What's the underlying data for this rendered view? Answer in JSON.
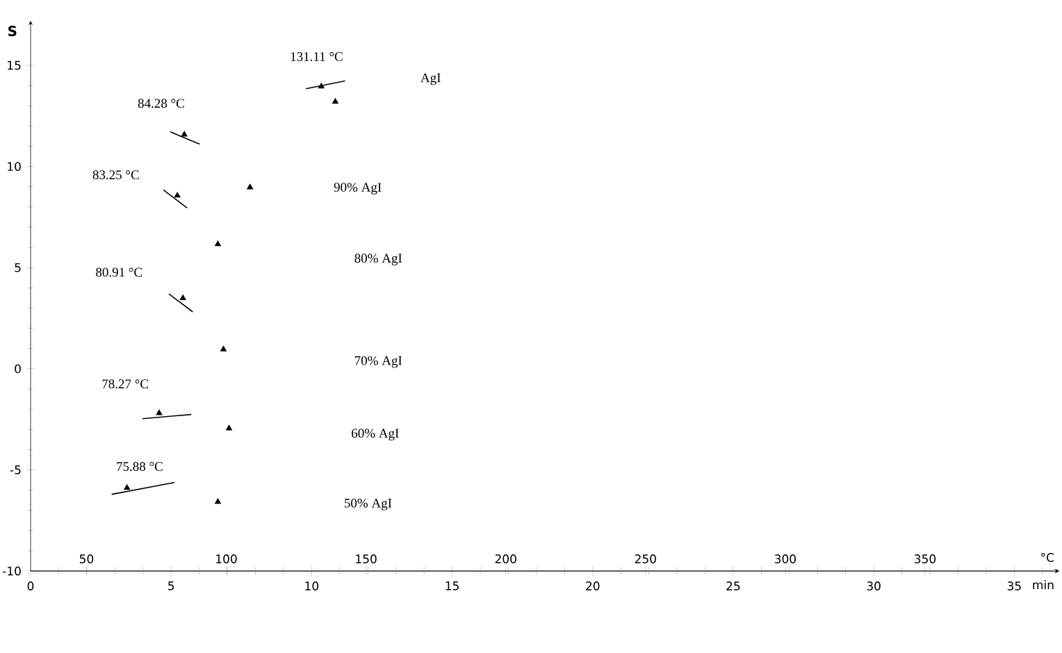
{
  "chart_data": {
    "type": "line",
    "xlabel": "°C",
    "x2label": "min",
    "ylabel": "S",
    "xlim": [
      30,
      398
    ],
    "xticks": [
      50,
      100,
      150,
      200,
      250,
      300,
      350
    ],
    "x2lim": [
      0,
      36.6
    ],
    "x2ticks": [
      0,
      {
        "value": 1,
        "label": null
      },
      {
        "value": 2,
        "label": null
      },
      {
        "value": 3,
        "label": null
      },
      {
        "value": 4,
        "label": null
      },
      5,
      {
        "value": 6,
        "label": null
      },
      {
        "value": 7,
        "label": null
      },
      {
        "value": 8,
        "label": null
      },
      {
        "value": 9,
        "label": null
      },
      10,
      {
        "value": 11,
        "label": null
      },
      {
        "value": 12,
        "label": null
      },
      {
        "value": 13,
        "label": null
      },
      {
        "value": 14,
        "label": null
      },
      15,
      {
        "value": 16,
        "label": null
      },
      {
        "value": 17,
        "label": null
      },
      {
        "value": 18,
        "label": null
      },
      {
        "value": 19,
        "label": null
      },
      20,
      {
        "value": 21,
        "label": null
      },
      {
        "value": 22,
        "label": null
      },
      {
        "value": 23,
        "label": null
      },
      {
        "value": 24,
        "label": null
      },
      25,
      {
        "value": 26,
        "label": null
      },
      {
        "value": 27,
        "label": null
      },
      {
        "value": 28,
        "label": null
      },
      {
        "value": 29,
        "label": null
      },
      30,
      {
        "value": 31,
        "label": null
      },
      {
        "value": 32,
        "label": null
      },
      {
        "value": 33,
        "label": null
      },
      {
        "value": 34,
        "label": null
      },
      35,
      {
        "value": 36,
        "label": null
      }
    ],
    "ylim": [
      -10,
      17.2
    ],
    "yticks": [
      -10,
      -5,
      0,
      5,
      10,
      15
    ],
    "grid": false,
    "series": [
      {
        "color": "#000000",
        "x": [
          128.5,
          142.5
        ],
        "values": [
          13.84,
          14.23
        ]
      },
      {
        "color": "#000000",
        "x": [
          80,
          90.5
        ],
        "values": [
          11.71,
          11.1
        ]
      },
      {
        "color": "#000000",
        "x": [
          77.5,
          86
        ],
        "values": [
          8.84,
          7.95
        ]
      },
      {
        "color": "#000000",
        "x": [
          79.5,
          88
        ],
        "values": [
          3.7,
          2.81
        ]
      },
      {
        "color": "#000000",
        "x": [
          70,
          87.5
        ],
        "values": [
          -2.47,
          -2.26
        ]
      },
      {
        "color": "#000000",
        "x": [
          59,
          81.5
        ],
        "values": [
          -6.21,
          -5.62
        ]
      },
      {
        "type": "scatter",
        "marker": "triangle",
        "color": "#000000",
        "x": [
          134,
          139,
          85,
          108.5,
          82.5,
          97,
          84.5,
          99,
          76,
          101,
          64.5,
          97
        ],
        "values": [
          13.96,
          13.2,
          11.58,
          8.97,
          8.56,
          6.16,
          3.49,
          0.96,
          -2.19,
          -2.95,
          -5.89,
          -6.58
        ]
      }
    ],
    "annotations": [
      "131.11 °C",
      "84.28 °C",
      "83.25 °C",
      "80.91 °C",
      "78.27 °C",
      "75.88 °C",
      "AgI",
      "90% AgI",
      "80% AgI",
      "70% AgI",
      "60% AgI",
      "50% AgI"
    ]
  }
}
